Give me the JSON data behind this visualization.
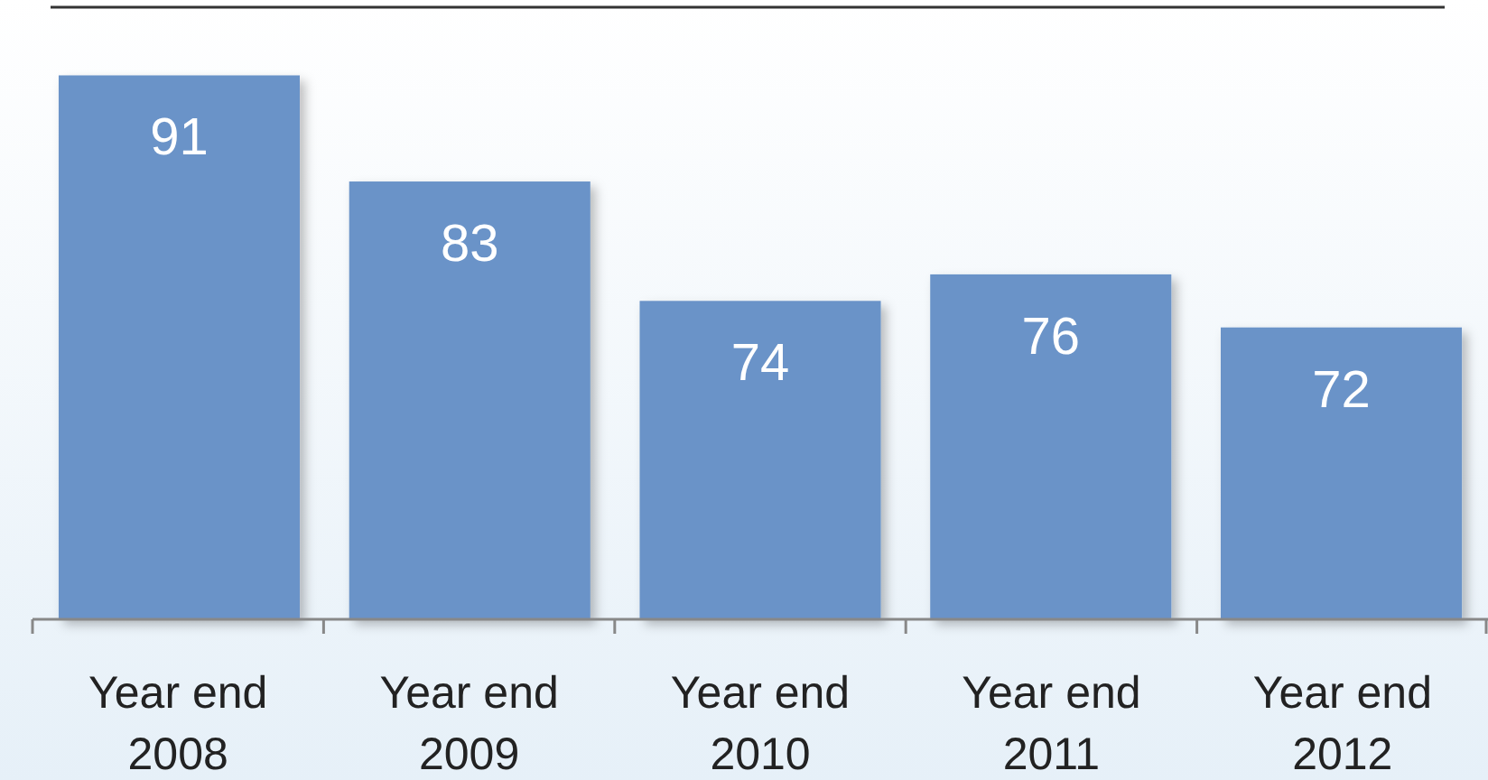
{
  "chart_data": {
    "type": "bar",
    "categories": [
      "Year end 2008",
      "Year end 2009",
      "Year end 2010",
      "Year end 2011",
      "Year end 2012"
    ],
    "values": [
      91,
      83,
      74,
      76,
      72
    ],
    "color": "#6a93c8",
    "ylim": [
      50,
      96
    ],
    "tick_labels": "x",
    "data_labels": true
  }
}
